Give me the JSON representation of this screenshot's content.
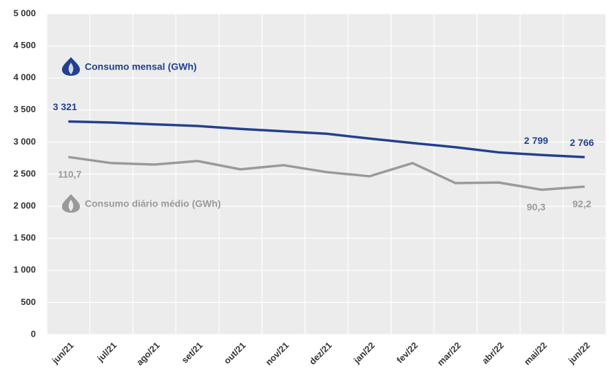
{
  "chart_data": {
    "type": "line",
    "categories": [
      "jun/21",
      "jul/21",
      "ago/21",
      "set/21",
      "out/21",
      "nov/21",
      "dez/21",
      "jan/22",
      "fev/22",
      "mar/22",
      "abr/22",
      "mai/22",
      "jun/22"
    ],
    "series": [
      {
        "name": "Consumo mensal (GWh)",
        "color": "#23408e",
        "values": [
          3321,
          3305,
          3277,
          3251,
          3205,
          3168,
          3130,
          3055,
          2985,
          2920,
          2840,
          2799,
          2766
        ],
        "value_labels": [
          "3 321",
          null,
          null,
          null,
          null,
          null,
          null,
          null,
          null,
          null,
          null,
          "2 799",
          "2 766"
        ]
      },
      {
        "name": "Consumo diário médio (GWh)",
        "color": "#9a9a9a",
        "axis": "y2",
        "values": [
          110.7,
          106.9,
          106.0,
          108.2,
          103.0,
          105.6,
          101.3,
          98.7,
          106.9,
          94.4,
          94.8,
          90.3,
          92.2
        ],
        "value_labels": [
          "110,7",
          null,
          null,
          null,
          null,
          null,
          null,
          null,
          null,
          null,
          null,
          "90,3",
          "92,2"
        ]
      }
    ],
    "ylim": [
      0,
      5000
    ],
    "yticks": [
      0,
      500,
      {
        "value": 1000,
        "label": "1 000"
      },
      {
        "value": 1500,
        "label": "1 500"
      },
      {
        "value": 2000,
        "label": "2 000"
      },
      {
        "value": 2500,
        "label": "2 500"
      },
      {
        "value": 3000,
        "label": "3 000"
      },
      {
        "value": 3500,
        "label": "3 500"
      },
      {
        "value": 4000,
        "label": "4 000"
      },
      {
        "value": 4500,
        "label": "4 500"
      },
      {
        "value": 5000,
        "label": "5 000"
      }
    ],
    "y2lim": [
      0,
      200
    ],
    "grid": true
  }
}
